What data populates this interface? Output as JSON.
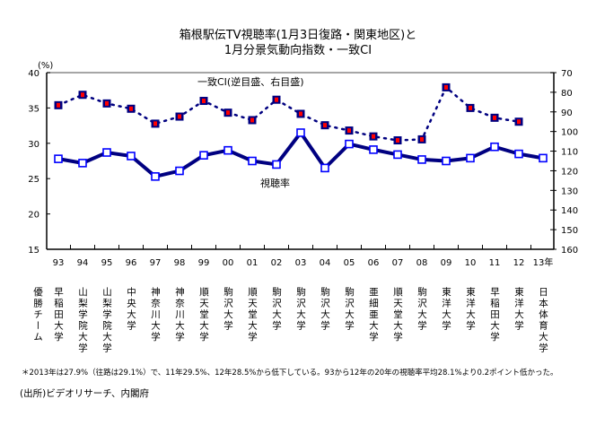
{
  "title_line1": "箱根駅伝TV視聴率(1月3日復路・関東地区)と",
  "title_line2": "1月分景気動向指数・一致CI",
  "winner_header": "優勝チーム",
  "winners": [
    "早稲田大学",
    "山梨学院大学",
    "山梨学院大学",
    "中央大学",
    "神奈川大学",
    "神奈川大学",
    "順天堂大学",
    "駒沢大学",
    "順天堂大学",
    "駒沢大学",
    "駒沢大学",
    "駒沢大学",
    "駒沢大学",
    "亜細亜大学",
    "順天堂大学",
    "駒沢大学",
    "東洋大学",
    "東洋大学",
    "早稲田大学",
    "東洋大学",
    "日本体育大学"
  ],
  "footnote": "＊2013年は27.9%（往路は29.1%）で、11年29.5%、12年28.5%から低下している。93から12年の20年の視聴率平均28.1%より0.2ポイント低かった。",
  "source": "(出所)ビデオリサーチ、内閣府",
  "colors": {
    "line": "#000080",
    "ci_marker": "#ff0000",
    "rating_marker": "#0000ff"
  },
  "chart_data": {
    "type": "line",
    "categories": [
      "93",
      "94",
      "95",
      "96",
      "97",
      "98",
      "99",
      "00",
      "01",
      "02",
      "03",
      "04",
      "05",
      "06",
      "07",
      "08",
      "09",
      "10",
      "11",
      "12",
      "13年"
    ],
    "left_axis": {
      "label": "(%)",
      "range": [
        15,
        40
      ],
      "ticks": [
        15,
        20,
        25,
        30,
        35,
        40
      ]
    },
    "right_axis": {
      "range": [
        70,
        160
      ],
      "inverted": true,
      "ticks": [
        70,
        80,
        90,
        100,
        110,
        120,
        130,
        140,
        150,
        160
      ]
    },
    "series": [
      {
        "name": "視聴率",
        "axis": "left",
        "values": [
          27.8,
          27.2,
          28.7,
          28.2,
          25.3,
          26.1,
          28.3,
          29.0,
          27.5,
          27.0,
          31.5,
          26.5,
          29.9,
          29.1,
          28.4,
          27.7,
          27.5,
          27.9,
          29.5,
          28.5,
          27.9
        ]
      },
      {
        "name": "一致CI(逆目盛、右目盛)",
        "axis": "right",
        "values": [
          86.6,
          81.3,
          85.7,
          88.4,
          96.0,
          92.4,
          84.4,
          90.4,
          94.2,
          83.8,
          91.0,
          96.8,
          99.5,
          102.5,
          104.5,
          104.0,
          77.5,
          88.0,
          93.0,
          95.0,
          null
        ]
      }
    ]
  }
}
